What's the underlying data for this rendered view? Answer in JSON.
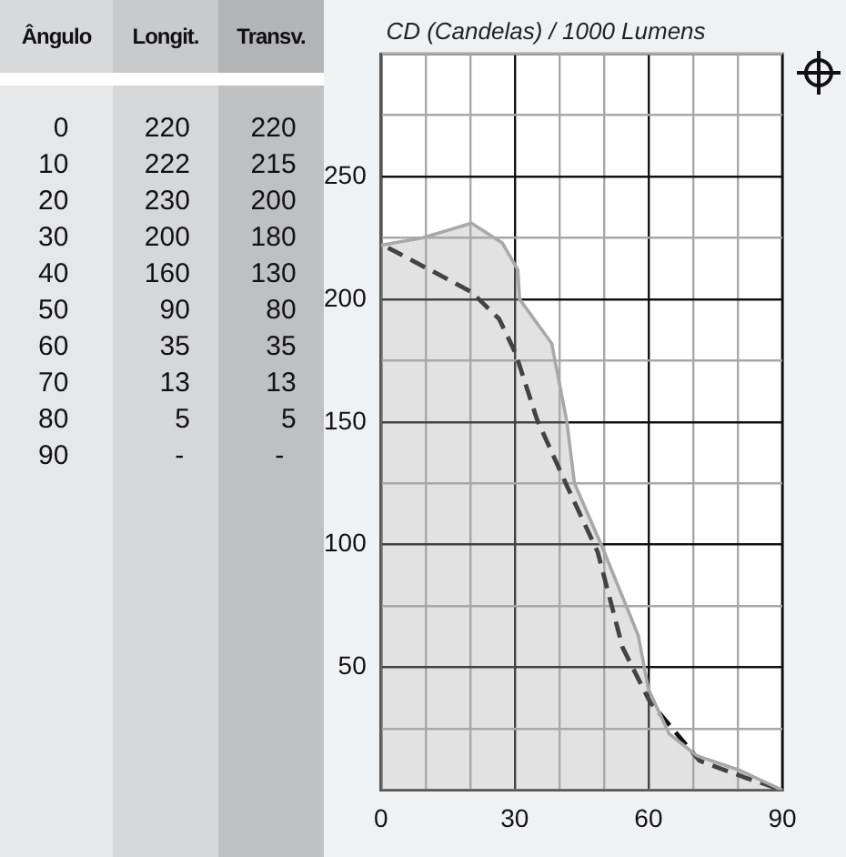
{
  "chart_data": [
    {
      "type": "other",
      "annotations": [
        "Ângulo",
        "Longit.",
        "Transv.",
        "0 220 220",
        "10 222 215",
        "20 230 200",
        "30 200 180",
        "40 160 130",
        "50 90 80",
        "60 35 35",
        "70 13 13",
        "80 5 5",
        "90 - -"
      ]
    },
    {
      "type": "line",
      "title": "CD (Candelas) / 1000 Lumens",
      "xlim": [
        0,
        90
      ],
      "ylim": [
        0,
        300
      ],
      "marker": "none",
      "grid": true,
      "xticks": [
        0,
        {
          "value": 10,
          "label": null
        },
        {
          "value": 20,
          "label": null
        },
        30,
        {
          "value": 40,
          "label": null
        },
        {
          "value": 50,
          "label": null
        },
        60,
        {
          "value": 70,
          "label": null
        },
        {
          "value": 80,
          "label": null
        },
        90
      ],
      "yticks": [
        {
          "value": 0,
          "label": null
        },
        {
          "value": 25,
          "label": null
        },
        50,
        {
          "value": 75,
          "label": null
        },
        100,
        {
          "value": 125,
          "label": null
        },
        150,
        {
          "value": 175,
          "label": null
        },
        200,
        {
          "value": 225,
          "label": null
        },
        250,
        {
          "value": 275,
          "label": null
        },
        {
          "value": 300,
          "label": null
        }
      ],
      "series": [
        {
          "type": "area",
          "color": "#a8a8a8",
          "line_style": "solid",
          "x": [
            0,
            9.3,
            20.3,
            27.2,
            30.7,
            31.1,
            38.3,
            41.7,
            43.4,
            49.4,
            57.7,
            60,
            64.6,
            70.8,
            80.5,
            90
          ],
          "values": [
            222,
            225,
            231,
            223,
            212,
            200,
            182,
            150,
            125,
            100,
            63,
            41,
            23,
            14,
            8,
            0
          ]
        },
        {
          "type": "line",
          "color": "#111111",
          "line_style": "dashed",
          "x": [
            1.6,
            20.3,
            26.5,
            30.2,
            35,
            41.7,
            48.6,
            54.2,
            60.3,
            71.4,
            81.8,
            90
          ],
          "values": [
            221,
            203,
            192,
            178,
            151,
            124,
            97,
            58,
            36,
            12,
            5,
            0
          ]
        }
      ]
    }
  ]
}
